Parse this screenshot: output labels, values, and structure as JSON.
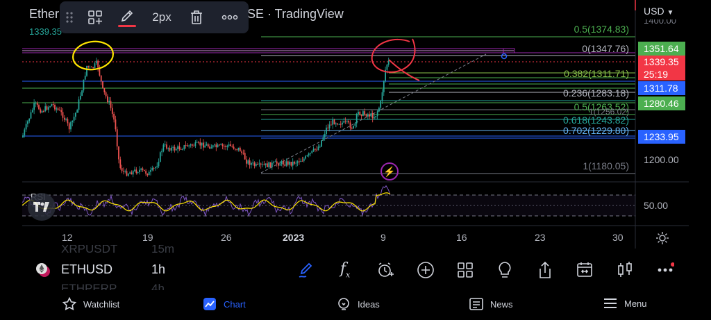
{
  "window_title": "Ether",
  "window_title_tail": "SE · TradingView",
  "currency": "USD",
  "drawing_toolbar": {
    "stroke_width": "2px"
  },
  "last_price_topleft": "1339.35",
  "price_tags": {
    "p1351": "1351.64",
    "p1339": "1339.35",
    "countdown": "25:19",
    "p1311": "1311.78",
    "p1280": "1280.46",
    "p1233": "1233.95"
  },
  "price_axis": {
    "top_partial": "1400.00",
    "p1200": "1200.00",
    "rsi50": "50.00"
  },
  "fib_labels": {
    "f05_top": "0.5(1374.83)",
    "f0_top": "0(1347.76)",
    "f0382": "0.382(1311.71)",
    "f0236": "0.236(1283.18)",
    "f05b": "0.5(1263.52)",
    "f1b": "1(1256.02)",
    "f0618": "0.618(1243.82)",
    "f0702": "0.702(1229.80)",
    "f1": "1(1180.05)"
  },
  "rsi_label": "RSI",
  "time_axis": [
    "12",
    "19",
    "26",
    "2023",
    "9",
    "16",
    "23",
    "30"
  ],
  "watchlist_ghost": {
    "top": "XRPUSDT",
    "top_tf": "15m",
    "bottom": "ETHPERP",
    "bottom_tf": "4h"
  },
  "symbol": {
    "name": "ETHUSD",
    "timeframe": "1h"
  },
  "bottom_nav": [
    {
      "label": "Watchlist"
    },
    {
      "label": "Chart"
    },
    {
      "label": "Ideas"
    },
    {
      "label": "News"
    },
    {
      "label": "Menu"
    }
  ],
  "colors": {
    "accent": "#2962ff",
    "green_tag": "#4caf50",
    "red_tag": "#f23645",
    "blue_tag": "#2962ff",
    "rsi_line": "#ffe600",
    "rsi_fill": "#7e57c2"
  }
}
